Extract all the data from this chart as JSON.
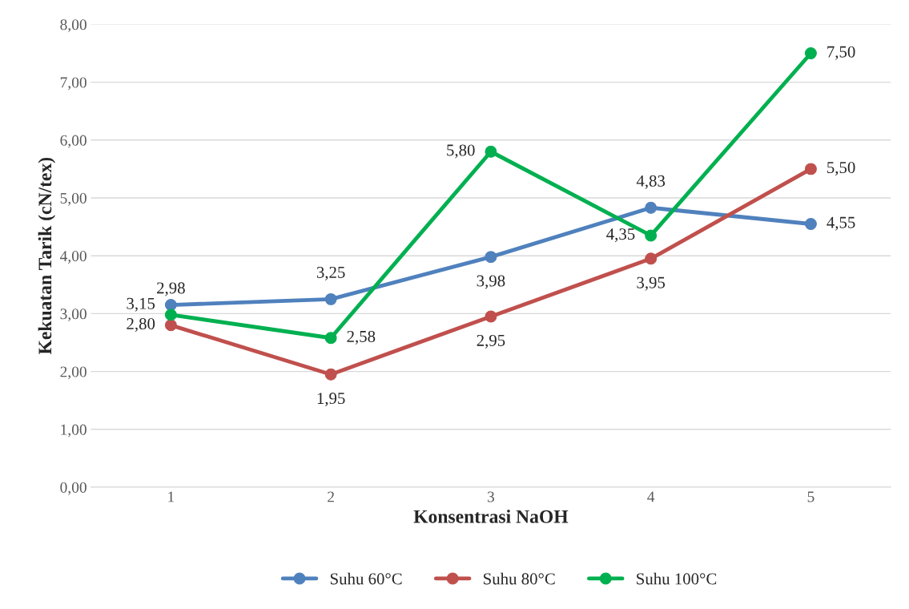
{
  "chart_data": {
    "type": "line",
    "xlabel": "Konsentrasi NaOH",
    "ylabel": "Kekuatan Tarik (cN/tex)",
    "categories": [
      "1",
      "2",
      "3",
      "4",
      "5"
    ],
    "series": [
      {
        "name": "Suhu 60°C",
        "color": "#4f81bd",
        "values": [
          3.15,
          3.25,
          3.98,
          4.83,
          4.55
        ],
        "value_labels": [
          "3,15",
          "3,25",
          "3,98",
          "4,83",
          "4,55"
        ]
      },
      {
        "name": "Suhu 80°C",
        "color": "#c0504d",
        "values": [
          2.8,
          1.95,
          2.95,
          3.95,
          5.5
        ],
        "value_labels": [
          "2,80",
          "1,95",
          "2,95",
          "3,95",
          "5,50"
        ]
      },
      {
        "name": "Suhu 100°C",
        "color": "#00b050",
        "values": [
          2.98,
          2.58,
          5.8,
          4.35,
          7.5
        ],
        "value_labels": [
          "2,98",
          "2,58",
          "5,80",
          "4,35",
          "7,50"
        ]
      }
    ],
    "ylim": [
      0,
      8
    ],
    "yticks": [
      {
        "value": 0,
        "label": "0,00"
      },
      {
        "value": 1,
        "label": "1,00"
      },
      {
        "value": 2,
        "label": "2,00"
      },
      {
        "value": 3,
        "label": "3,00"
      },
      {
        "value": 4,
        "label": "4,00"
      },
      {
        "value": 5,
        "label": "5,00"
      },
      {
        "value": 6,
        "label": "6,00"
      },
      {
        "value": 7,
        "label": "7,00"
      },
      {
        "value": 8,
        "label": "8,00"
      }
    ],
    "grid": "y",
    "legend": "bottom",
    "marker": "circle",
    "line_style": "solid"
  }
}
